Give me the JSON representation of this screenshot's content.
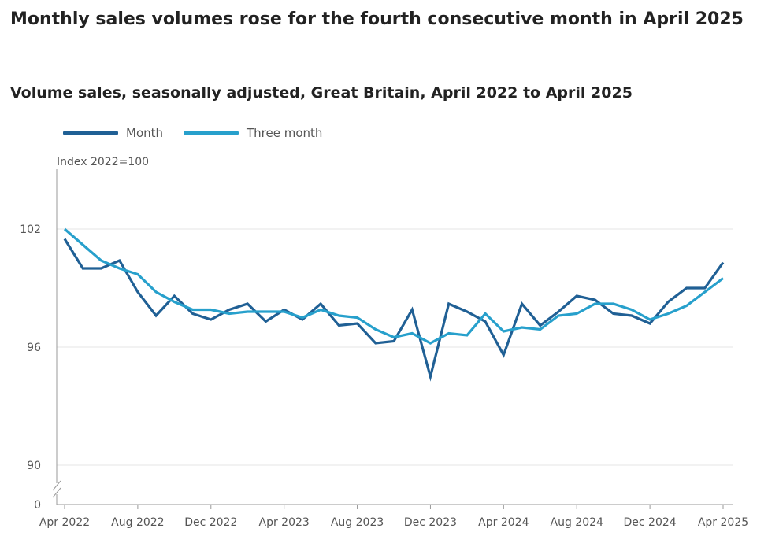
{
  "header": {
    "title": "Monthly sales volumes rose for the fourth consecutive month in April 2025",
    "subtitle": "Volume sales, seasonally adjusted, Great Britain, April 2022 to April 2025"
  },
  "colors": {
    "month": "#206095",
    "three_month": "#27a0cc",
    "grid": "#e4e4e4",
    "axis": "#999999"
  },
  "chart_data": {
    "type": "line",
    "title": "Monthly sales volumes rose for the fourth consecutive month in April 2025",
    "subtitle": "Volume sales, seasonally adjusted, Great Britain, April 2022 to April 2025",
    "ylabel": "Index 2022=100",
    "xlabel": "",
    "legend": "top-left",
    "y_axis_break": true,
    "y_ticks": [
      0,
      90,
      96,
      102
    ],
    "ylim": [
      90,
      105
    ],
    "grid": true,
    "x": [
      "Apr 2022",
      "May 2022",
      "Jun 2022",
      "Jul 2022",
      "Aug 2022",
      "Sep 2022",
      "Oct 2022",
      "Nov 2022",
      "Dec 2022",
      "Jan 2023",
      "Feb 2023",
      "Mar 2023",
      "Apr 2023",
      "May 2023",
      "Jun 2023",
      "Jul 2023",
      "Aug 2023",
      "Sep 2023",
      "Oct 2023",
      "Nov 2023",
      "Dec 2023",
      "Jan 2024",
      "Feb 2024",
      "Mar 2024",
      "Apr 2024",
      "May 2024",
      "Jun 2024",
      "Jul 2024",
      "Aug 2024",
      "Sep 2024",
      "Oct 2024",
      "Nov 2024",
      "Dec 2024",
      "Jan 2025",
      "Feb 2025",
      "Mar 2025",
      "Apr 2025"
    ],
    "x_tick_labels": [
      "Apr 2022",
      "Aug 2022",
      "Dec 2022",
      "Apr 2023",
      "Aug 2023",
      "Dec 2023",
      "Apr 2024",
      "Aug 2024",
      "Dec 2024",
      "Apr 2025"
    ],
    "x_tick_indices": [
      0,
      4,
      8,
      12,
      16,
      20,
      24,
      28,
      32,
      36
    ],
    "series": [
      {
        "name": "Month",
        "color": "#206095",
        "values": [
          101.5,
          100.0,
          100.0,
          100.4,
          98.8,
          97.6,
          98.6,
          97.7,
          97.4,
          97.9,
          98.2,
          97.3,
          97.9,
          97.4,
          98.2,
          97.1,
          97.2,
          96.2,
          96.3,
          97.9,
          94.5,
          98.2,
          97.8,
          97.3,
          95.6,
          98.2,
          97.1,
          97.8,
          98.6,
          98.4,
          97.7,
          97.6,
          97.2,
          98.3,
          99.0,
          99.0,
          100.3
        ]
      },
      {
        "name": "Three month",
        "color": "#27a0cc",
        "values": [
          102.0,
          101.2,
          100.4,
          100.0,
          99.7,
          98.8,
          98.3,
          97.9,
          97.9,
          97.7,
          97.8,
          97.8,
          97.8,
          97.5,
          97.9,
          97.6,
          97.5,
          96.9,
          96.5,
          96.7,
          96.2,
          96.7,
          96.6,
          97.7,
          96.8,
          97.0,
          96.9,
          97.6,
          97.7,
          98.2,
          98.2,
          97.9,
          97.4,
          97.7,
          98.1,
          98.8,
          99.5
        ]
      }
    ]
  }
}
